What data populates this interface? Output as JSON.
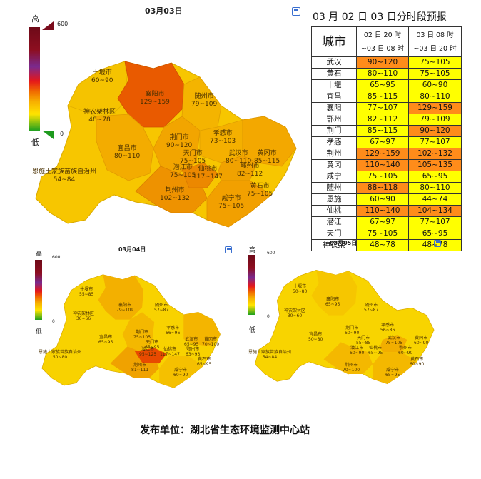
{
  "map_main": {
    "title": "03月03日",
    "legend": {
      "high": "高",
      "low": "低",
      "max": "600",
      "min": "0"
    },
    "cities": [
      {
        "name": "十堰市",
        "value": "60~90"
      },
      {
        "name": "襄阳市",
        "value": "129~159"
      },
      {
        "name": "随州市",
        "value": "79~109"
      },
      {
        "name": "神农架林区",
        "value": "48~78"
      },
      {
        "name": "荆门市",
        "value": "90~120"
      },
      {
        "name": "孝感市",
        "value": "73~103"
      },
      {
        "name": "宜昌市",
        "value": "80~110"
      },
      {
        "name": "天门市",
        "value": "75~105"
      },
      {
        "name": "武汉市",
        "value": "80~110"
      },
      {
        "name": "黄冈市",
        "value": "85~115"
      },
      {
        "name": "潜江市",
        "value": "75~105"
      },
      {
        "name": "仙桃市",
        "value": "117~147"
      },
      {
        "name": "鄂州市",
        "value": "82~112"
      },
      {
        "name": "恩施土家族苗族自治州",
        "value": "54~84"
      },
      {
        "name": "荆州市",
        "value": "102~132"
      },
      {
        "name": "黄石市",
        "value": "75~105"
      },
      {
        "name": "咸宁市",
        "value": "75~105"
      }
    ]
  },
  "map_04": {
    "title": "03月04日",
    "legend": {
      "high": "高",
      "low": "低",
      "max": "600",
      "min": "0"
    },
    "cities": [
      {
        "name": "十堰市",
        "value": "55~85"
      },
      {
        "name": "襄阳市",
        "value": "79~109"
      },
      {
        "name": "随州市",
        "value": "57~87"
      },
      {
        "name": "神农架林区",
        "value": "36~66"
      },
      {
        "name": "荆门市",
        "value": "75~105"
      },
      {
        "name": "孝感市",
        "value": "66~96"
      },
      {
        "name": "宜昌市",
        "value": "65~95"
      },
      {
        "name": "天门市",
        "value": "65~95"
      },
      {
        "name": "武汉市",
        "value": "65~95"
      },
      {
        "name": "黄冈市",
        "value": "70~100"
      },
      {
        "name": "潜江市",
        "value": "95~125"
      },
      {
        "name": "仙桃市",
        "value": "117~147"
      },
      {
        "name": "鄂州市",
        "value": "63~93"
      },
      {
        "name": "恩施土家族苗族自治州",
        "value": "50~80"
      },
      {
        "name": "荆州市",
        "value": "81~111"
      },
      {
        "name": "黄石市",
        "value": "65~95"
      },
      {
        "name": "咸宁市",
        "value": "60~90"
      }
    ]
  },
  "map_05": {
    "title": "03月05日",
    "legend": {
      "high": "高",
      "low": "低",
      "max": "600",
      "min": "0"
    },
    "cities": [
      {
        "name": "十堰市",
        "value": "50~80"
      },
      {
        "name": "襄阳市",
        "value": "65~95"
      },
      {
        "name": "随州市",
        "value": "57~87"
      },
      {
        "name": "神农架林区",
        "value": "30~60"
      },
      {
        "name": "荆门市",
        "value": "60~90"
      },
      {
        "name": "孝感市",
        "value": "56~86"
      },
      {
        "name": "宜昌市",
        "value": "50~80"
      },
      {
        "name": "天门市",
        "value": "55~85"
      },
      {
        "name": "武汉市",
        "value": "75~105"
      },
      {
        "name": "黄冈市",
        "value": "60~90"
      },
      {
        "name": "潜江市",
        "value": "60~90"
      },
      {
        "name": "仙桃市",
        "value": "65~95"
      },
      {
        "name": "鄂州市",
        "value": "60~90"
      },
      {
        "name": "恩施土家族苗族自治州",
        "value": "54~84"
      },
      {
        "name": "荆州市",
        "value": "70~100"
      },
      {
        "name": "黄石市",
        "value": "60~90"
      },
      {
        "name": "咸宁市",
        "value": "65~95"
      }
    ]
  },
  "table": {
    "title": "03 月 02 日 03 日分时段预报",
    "col_city": "城市",
    "col1_line1": "02 日 20 时",
    "col1_line2": "~03 日 08 时",
    "col2_line1": "03 日 08 时",
    "col2_line2": "~03 日 20 时",
    "rows": [
      {
        "city": "武汉",
        "v1": "90~120",
        "v2": "75~105",
        "c1": "o",
        "c2": "y"
      },
      {
        "city": "黄石",
        "v1": "80~110",
        "v2": "75~105",
        "c1": "y",
        "c2": "y"
      },
      {
        "city": "十堰",
        "v1": "65~95",
        "v2": "60~90",
        "c1": "y",
        "c2": "y"
      },
      {
        "city": "宜昌",
        "v1": "85~115",
        "v2": "80~110",
        "c1": "y",
        "c2": "y"
      },
      {
        "city": "襄阳",
        "v1": "77~107",
        "v2": "129~159",
        "c1": "y",
        "c2": "o"
      },
      {
        "city": "鄂州",
        "v1": "82~112",
        "v2": "79~109",
        "c1": "y",
        "c2": "y"
      },
      {
        "city": "荆门",
        "v1": "85~115",
        "v2": "90~120",
        "c1": "y",
        "c2": "o"
      },
      {
        "city": "孝感",
        "v1": "67~97",
        "v2": "77~107",
        "c1": "y",
        "c2": "y"
      },
      {
        "city": "荆州",
        "v1": "129~159",
        "v2": "102~132",
        "c1": "o",
        "c2": "o"
      },
      {
        "city": "黄冈",
        "v1": "110~140",
        "v2": "105~135",
        "c1": "o",
        "c2": "o"
      },
      {
        "city": "咸宁",
        "v1": "75~105",
        "v2": "65~95",
        "c1": "y",
        "c2": "y"
      },
      {
        "city": "随州",
        "v1": "88~118",
        "v2": "80~110",
        "c1": "o",
        "c2": "y"
      },
      {
        "city": "恩施",
        "v1": "60~90",
        "v2": "44~74",
        "c1": "y",
        "c2": "y"
      },
      {
        "city": "仙桃",
        "v1": "110~140",
        "v2": "104~134",
        "c1": "o",
        "c2": "o"
      },
      {
        "city": "潜江",
        "v1": "67~97",
        "v2": "77~107",
        "c1": "y",
        "c2": "y"
      },
      {
        "city": "天门",
        "v1": "75~105",
        "v2": "65~95",
        "c1": "y",
        "c2": "y"
      },
      {
        "city": "神农架",
        "v1": "48~78",
        "v2": "48~78",
        "c1": "y",
        "c2": "y"
      }
    ]
  },
  "footer": "发布单位：湖北省生态环境监测中心站",
  "colors": {
    "yellow": "#ffff00",
    "orange": "#ff8c1a",
    "map_yellow": "#f7c600",
    "map_orange": "#f19a00",
    "map_red": "#e95a00"
  }
}
